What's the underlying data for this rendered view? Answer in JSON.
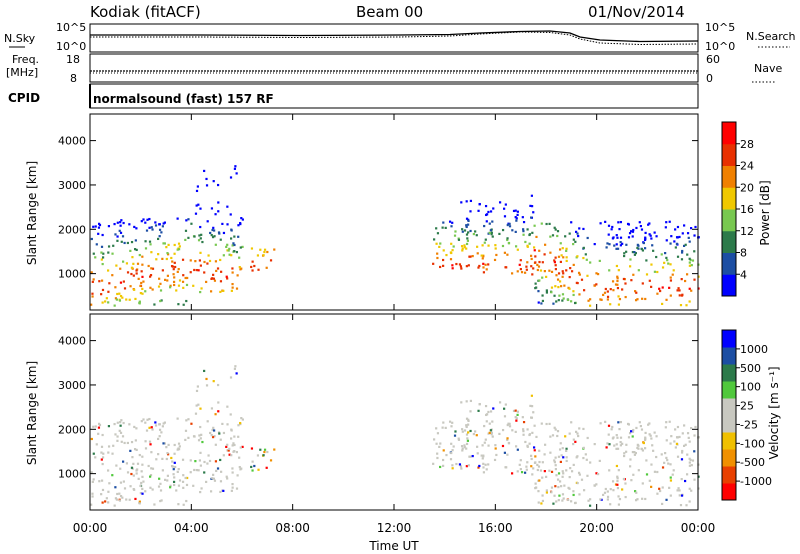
{
  "header": {
    "station": "Kodiak (fitACF)",
    "beam": "Beam 00",
    "date": "01/Nov/2014"
  },
  "noise_panel": {
    "left_label": "N.Sky",
    "right_label": "N.Search",
    "left_ticks": [
      "10^5",
      "10^0"
    ],
    "right_ticks": [
      "10^5",
      "10^0"
    ]
  },
  "freq_panel": {
    "left_label_line1": "Freq.",
    "left_label_line2": "[MHz]",
    "left_ticks": [
      "18",
      "8"
    ],
    "right_label": "Nave",
    "right_ticks": [
      "60",
      "0"
    ]
  },
  "cpid_panel": {
    "label": "CPID",
    "text": "normalsound (fast) 157 RF"
  },
  "colors": {
    "power_scale": [
      "#0000ff",
      "#1c4ea3",
      "#2c7a4a",
      "#78c850",
      "#f0c800",
      "#f08000",
      "#e83000",
      "#ff0000"
    ],
    "velocity_scale": [
      "#ff0000",
      "#e84000",
      "#f09000",
      "#f0c000",
      "#c8c8c0",
      "#c8c8c0",
      "#50c83c",
      "#2c7a4a",
      "#1c4ea3",
      "#0000ff"
    ]
  },
  "chart_data": [
    {
      "type": "heatmap",
      "panel": "power",
      "ylabel": "Slant Range [km]",
      "ylim": [
        180,
        4600
      ],
      "xlim": [
        0,
        24
      ],
      "y_ticks": [
        "1000",
        "2000",
        "3000",
        "4000"
      ],
      "colorbar": {
        "label": "Power [dB]",
        "ticks": [
          "4",
          "8",
          "12",
          "16",
          "20",
          "24",
          "28"
        ],
        "range": [
          0,
          30
        ]
      },
      "scatter_regions": [
        {
          "t0": 0.0,
          "t1": 4.1,
          "r0": 300,
          "r1": 2300
        },
        {
          "t0": 4.1,
          "t1": 6.0,
          "r0": 600,
          "r1": 3500
        },
        {
          "t0": 6.3,
          "t1": 7.3,
          "r0": 1000,
          "r1": 1600
        },
        {
          "t0": 13.5,
          "t1": 15.0,
          "r0": 1100,
          "r1": 2200
        },
        {
          "t0": 14.5,
          "t1": 17.5,
          "r0": 1000,
          "r1": 2800
        },
        {
          "t0": 17.5,
          "t1": 24.0,
          "r0": 300,
          "r1": 2200
        }
      ]
    },
    {
      "type": "heatmap",
      "panel": "velocity",
      "ylabel": "Slant Range [km]",
      "xlabel": "Time UT",
      "ylim": [
        180,
        4600
      ],
      "xlim": [
        0,
        24
      ],
      "y_ticks": [
        "1000",
        "2000",
        "3000",
        "4000"
      ],
      "x_ticks": [
        "00:00",
        "04:00",
        "08:00",
        "12:00",
        "16:00",
        "20:00",
        "00:00"
      ],
      "colorbar": {
        "label": "Velocity [m s⁻¹]",
        "ticks": [
          "1000",
          "500",
          "100",
          "25",
          "-25",
          "-100",
          "-500",
          "-1000"
        ]
      }
    }
  ]
}
